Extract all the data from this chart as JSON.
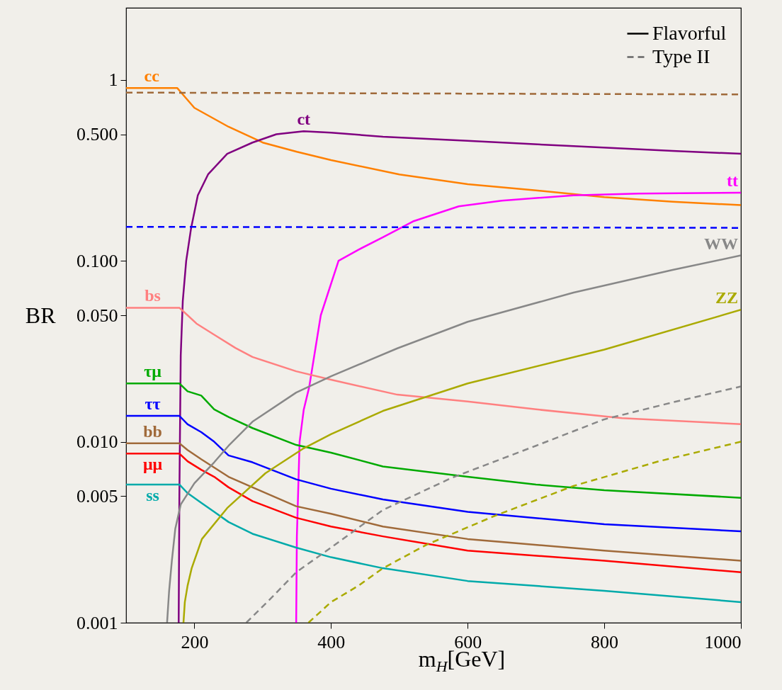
{
  "chart_data": {
    "type": "line",
    "ylabel": "BR",
    "xlabel": "m$_{H}$[GeV]",
    "xlim": [
      100,
      1000
    ],
    "xticks": [
      200,
      400,
      600,
      800,
      1000
    ],
    "ylim": [
      0.001,
      2.5
    ],
    "yticks": [
      0.001,
      0.005,
      {
        "value": 0.01,
        "label": "0.010"
      },
      {
        "value": 0.05,
        "label": "0.050"
      },
      {
        "value": 0.1,
        "label": "0.100"
      },
      {
        "value": 0.5,
        "label": "0.500"
      },
      1
    ],
    "log": true,
    "legend": "top right",
    "line_style": "solid",
    "series": [
      {
        "name": "cc",
        "color": "#ff8000",
        "x": [
          100,
          175,
          200,
          250,
          300,
          350,
          400,
          500,
          600,
          700,
          800,
          900,
          1000
        ],
        "values": [
          0.9,
          0.9,
          0.7,
          0.55,
          0.45,
          0.4,
          0.36,
          0.3,
          0.265,
          0.245,
          0.225,
          0.212,
          0.203
        ]
      },
      {
        "name": "ct",
        "color": "#800080",
        "x": [
          177,
          178,
          180,
          183,
          188,
          195,
          205,
          220,
          248,
          285,
          320,
          360,
          400,
          476,
          600,
          755,
          900,
          1000
        ],
        "values": [
          0.001,
          0.005,
          0.03,
          0.06,
          0.1,
          0.15,
          0.23,
          0.3,
          0.39,
          0.45,
          0.5,
          0.52,
          0.51,
          0.485,
          0.46,
          0.43,
          0.405,
          0.39
        ]
      },
      {
        "name": "tt",
        "color": "#ff00ff",
        "x": [
          349,
          350,
          354,
          360,
          368,
          385,
          411,
          440,
          476,
          520,
          587,
          650,
          755,
          850,
          1000
        ],
        "values": [
          0.001,
          0.003,
          0.01,
          0.015,
          0.02,
          0.05,
          0.1,
          0.115,
          0.135,
          0.165,
          0.2,
          0.215,
          0.23,
          0.235,
          0.238
        ]
      },
      {
        "name": "bs",
        "color": "#ff8080",
        "x": [
          100,
          178,
          190,
          203,
          229,
          260,
          285,
          349,
          400,
          497,
          600,
          700,
          826,
          1000
        ],
        "values": [
          0.055,
          0.055,
          0.05,
          0.045,
          0.039,
          0.033,
          0.0294,
          0.0245,
          0.022,
          0.0182,
          0.0167,
          0.0151,
          0.0135,
          0.0125
        ]
      },
      {
        "name": "τμ",
        "color": "#00aa00",
        "x": [
          100,
          178,
          190,
          210,
          229,
          250,
          285,
          349,
          400,
          476,
          600,
          700,
          800,
          1000
        ],
        "values": [
          0.021,
          0.021,
          0.019,
          0.018,
          0.0151,
          0.0137,
          0.0119,
          0.0096,
          0.0087,
          0.0073,
          0.0064,
          0.0058,
          0.0054,
          0.0049
        ]
      },
      {
        "name": "ττ",
        "color": "#0000ff",
        "x": [
          100,
          178,
          190,
          210,
          229,
          250,
          285,
          349,
          400,
          476,
          600,
          800,
          1000
        ],
        "values": [
          0.0139,
          0.0139,
          0.0125,
          0.0113,
          0.01,
          0.0084,
          0.0077,
          0.0062,
          0.0055,
          0.0048,
          0.0041,
          0.0035,
          0.0032
        ]
      },
      {
        "name": "bb",
        "color": "#a06a3a",
        "x": [
          100,
          178,
          190,
          210,
          229,
          250,
          285,
          349,
          400,
          476,
          600,
          800,
          1000
        ],
        "values": [
          0.0098,
          0.0098,
          0.009,
          0.008,
          0.0072,
          0.0064,
          0.0056,
          0.0044,
          0.004,
          0.0034,
          0.0029,
          0.0025,
          0.0022
        ]
      },
      {
        "name": "μμ",
        "color": "#ff0000",
        "x": [
          100,
          178,
          190,
          210,
          229,
          250,
          285,
          349,
          400,
          476,
          600,
          800,
          1000
        ],
        "values": [
          0.0086,
          0.0086,
          0.0078,
          0.007,
          0.0064,
          0.0056,
          0.0047,
          0.0038,
          0.0034,
          0.003,
          0.0025,
          0.0022,
          0.0019
        ]
      },
      {
        "name": "ss",
        "color": "#00aaaa",
        "x": [
          100,
          178,
          190,
          210,
          229,
          250,
          285,
          349,
          400,
          476,
          600,
          800,
          1000
        ],
        "values": [
          0.0058,
          0.0058,
          0.0052,
          0.0046,
          0.0041,
          0.0036,
          0.0031,
          0.0026,
          0.0023,
          0.002,
          0.0017,
          0.0015,
          0.0013
        ]
      },
      {
        "name": "WW",
        "color": "#888888",
        "x": [
          160,
          163,
          167,
          172,
          180,
          200,
          229,
          250,
          285,
          349,
          400,
          497,
          600,
          755,
          900,
          1000
        ],
        "values": [
          0.001,
          0.0015,
          0.0022,
          0.0033,
          0.0045,
          0.0059,
          0.0077,
          0.0095,
          0.0129,
          0.0187,
          0.023,
          0.0328,
          0.046,
          0.0667,
          0.089,
          0.107
        ]
      },
      {
        "name": "ZZ",
        "color": "#aaaa00",
        "x": [
          184,
          186,
          190,
          196,
          211,
          248,
          304,
          360,
          400,
          476,
          600,
          800,
          1000
        ],
        "values": [
          0.001,
          0.0013,
          0.0016,
          0.002,
          0.0029,
          0.0043,
          0.0067,
          0.0092,
          0.011,
          0.0148,
          0.021,
          0.0323,
          0.0536
        ]
      },
      {
        "color": "#a06a3a",
        "line_style": "dashed",
        "x": [
          100,
          1000
        ],
        "values": [
          0.85,
          0.83
        ]
      },
      {
        "color": "#0000ff",
        "line_style": "dashed",
        "x": [
          100,
          1000
        ],
        "values": [
          0.154,
          0.152
        ]
      },
      {
        "color": "#888888",
        "line_style": "dashed",
        "x": [
          276,
          315,
          349,
          400,
          476,
          576,
          700,
          800,
          900,
          1000
        ],
        "values": [
          0.001,
          0.0014,
          0.0019,
          0.0026,
          0.0042,
          0.0063,
          0.0095,
          0.0133,
          0.0165,
          0.0202
        ]
      },
      {
        "color": "#aaaa00",
        "line_style": "dashed",
        "x": [
          367,
          400,
          440,
          476,
          540,
          640,
          755,
          880,
          1000
        ],
        "values": [
          0.001,
          0.0013,
          0.0016,
          0.002,
          0.0027,
          0.0039,
          0.0057,
          0.0078,
          0.01
        ]
      },
      {
        "name": "Flavorful",
        "color": "#000000",
        "line_style": "solid"
      },
      {
        "name": "Type II",
        "color": "#666666",
        "line_style": "dashed"
      }
    ]
  }
}
